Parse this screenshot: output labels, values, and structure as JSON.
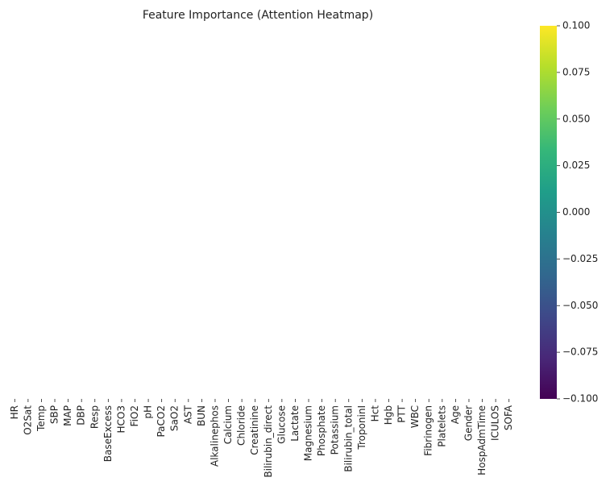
{
  "chart_data": {
    "type": "heatmap",
    "title": "Feature Importance (Attention Heatmap)",
    "categories": [
      "HR",
      "O2Sat",
      "Temp",
      "SBP",
      "MAP",
      "DBP",
      "Resp",
      "BaseExcess",
      "HCO3",
      "FiO2",
      "pH",
      "PaCO2",
      "SaO2",
      "AST",
      "BUN",
      "Alkalinephos",
      "Calcium",
      "Chloride",
      "Creatinine",
      "Bilirubin_direct",
      "Glucose",
      "Lactate",
      "Magnesium",
      "Phosphate",
      "Potassium",
      "Bilirubin_total",
      "TroponinI",
      "Hct",
      "Hgb",
      "PTT",
      "WBC",
      "Fibrinogen",
      "Platelets",
      "Age",
      "Gender",
      "HospAdmTime",
      "ICULOS",
      "SOFA"
    ],
    "colormap": "viridis",
    "clim": [
      -0.1,
      0.1
    ],
    "cticks": [
      {
        "value": -0.1,
        "label": "−0.100"
      },
      {
        "value": -0.075,
        "label": "−0.075"
      },
      {
        "value": -0.05,
        "label": "−0.050"
      },
      {
        "value": -0.025,
        "label": "−0.025"
      },
      {
        "value": 0,
        "label": "0.000"
      },
      {
        "value": 0.025,
        "label": "0.025"
      },
      {
        "value": 0.05,
        "label": "0.050"
      },
      {
        "value": 0.075,
        "label": "0.075"
      },
      {
        "value": 0.1,
        "label": "0.100"
      }
    ]
  }
}
